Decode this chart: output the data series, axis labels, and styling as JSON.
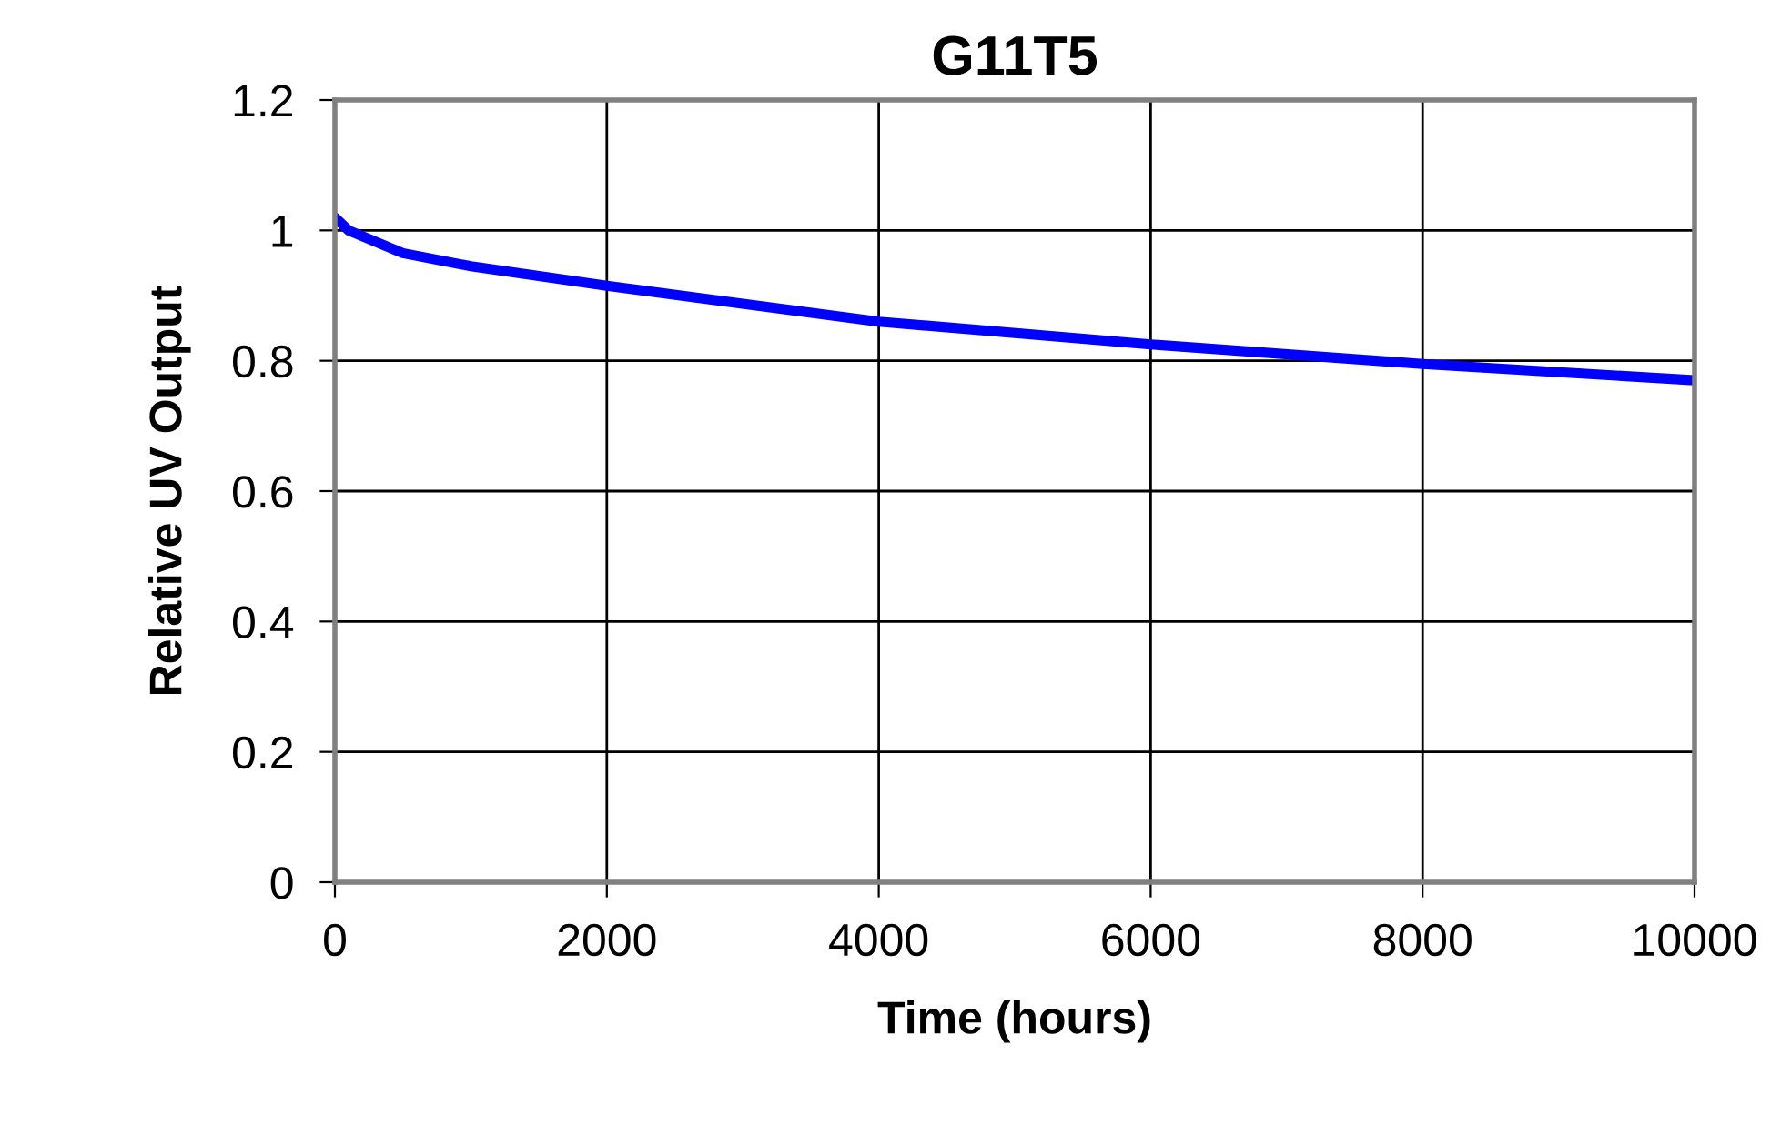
{
  "chart_data": {
    "type": "line",
    "title": "G11T5",
    "xlabel": "Time (hours)",
    "ylabel": "Relative UV Output",
    "x": [
      0,
      100,
      500,
      1000,
      2000,
      4000,
      6000,
      8000,
      10000
    ],
    "series": [
      {
        "color": "#0000ff",
        "values": [
          1.02,
          1.0,
          0.965,
          0.945,
          0.915,
          0.86,
          0.825,
          0.795,
          0.77
        ]
      }
    ],
    "xlim": [
      0,
      10000
    ],
    "xticks": [
      0,
      2000,
      4000,
      6000,
      8000,
      10000
    ],
    "ylim": [
      0,
      1.2
    ],
    "yticks": [
      0,
      0.2,
      0.4,
      0.6,
      0.8,
      1,
      1.2
    ],
    "grid": true,
    "marker": "none",
    "line_style": "solid"
  }
}
